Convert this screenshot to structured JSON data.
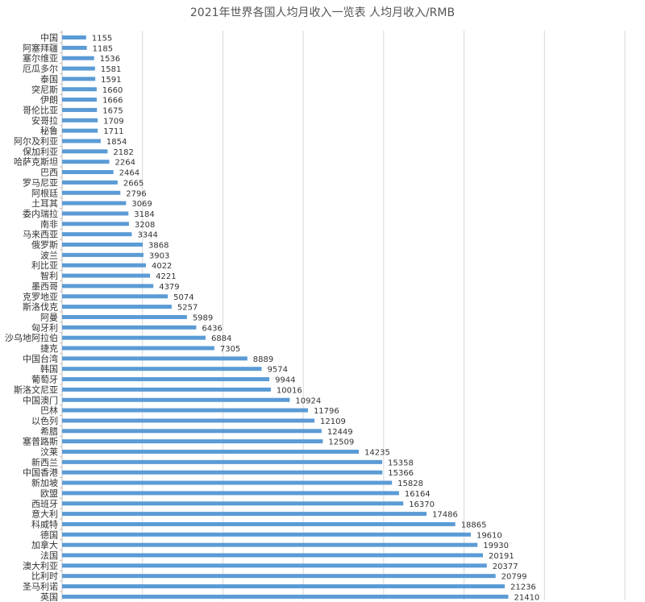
{
  "chart_data": {
    "type": "bar",
    "orientation": "horizontal",
    "title": "2021年世界各国人均月收入一览表 人均月收入/RMB",
    "xlabel": "",
    "ylabel": "",
    "xlim": [
      0,
      27000
    ],
    "grid": true,
    "legend": "none",
    "bar_color": "#5b9bd5",
    "categories": [
      "中国",
      "阿塞拜疆",
      "塞尔维亚",
      "厄瓜多尔",
      "泰国",
      "突尼斯",
      "伊朗",
      "哥伦比亚",
      "安哥拉",
      "秘鲁",
      "阿尔及利亚",
      "保加利亚",
      "哈萨克斯坦",
      "巴西",
      "罗马尼亚",
      "阿根廷",
      "土耳其",
      "委内瑞拉",
      "南非",
      "马来西亚",
      "俄罗斯",
      "波兰",
      "利比亚",
      "智利",
      "墨西哥",
      "克罗地亚",
      "斯洛伐克",
      "阿曼",
      "匈牙利",
      "沙乌地阿拉伯",
      "捷克",
      "中国台湾",
      "韩国",
      "葡萄牙",
      "斯洛文尼亚",
      "中国澳门",
      "巴林",
      "以色列",
      "希腊",
      "塞普路斯",
      "汶莱",
      "新西兰",
      "中国香港",
      "新加坡",
      "欧盟",
      "西班牙",
      "意大利",
      "科威特",
      "德国",
      "加拿大",
      "法国",
      "澳大利亚",
      "比利时",
      "圣马利诺",
      "英国"
    ],
    "values": [
      1155,
      1185,
      1536,
      1581,
      1591,
      1660,
      1666,
      1675,
      1709,
      1711,
      1854,
      2182,
      2264,
      2464,
      2665,
      2796,
      3069,
      3184,
      3208,
      3344,
      3868,
      3903,
      4022,
      4221,
      4379,
      5074,
      5257,
      5989,
      6436,
      6884,
      7305,
      8889,
      9574,
      9944,
      10016,
      10924,
      11796,
      12109,
      12449,
      12509,
      14235,
      15358,
      15366,
      15828,
      16164,
      16370,
      17486,
      18865,
      19610,
      19930,
      20191,
      20377,
      20799,
      21236,
      21410
    ]
  }
}
